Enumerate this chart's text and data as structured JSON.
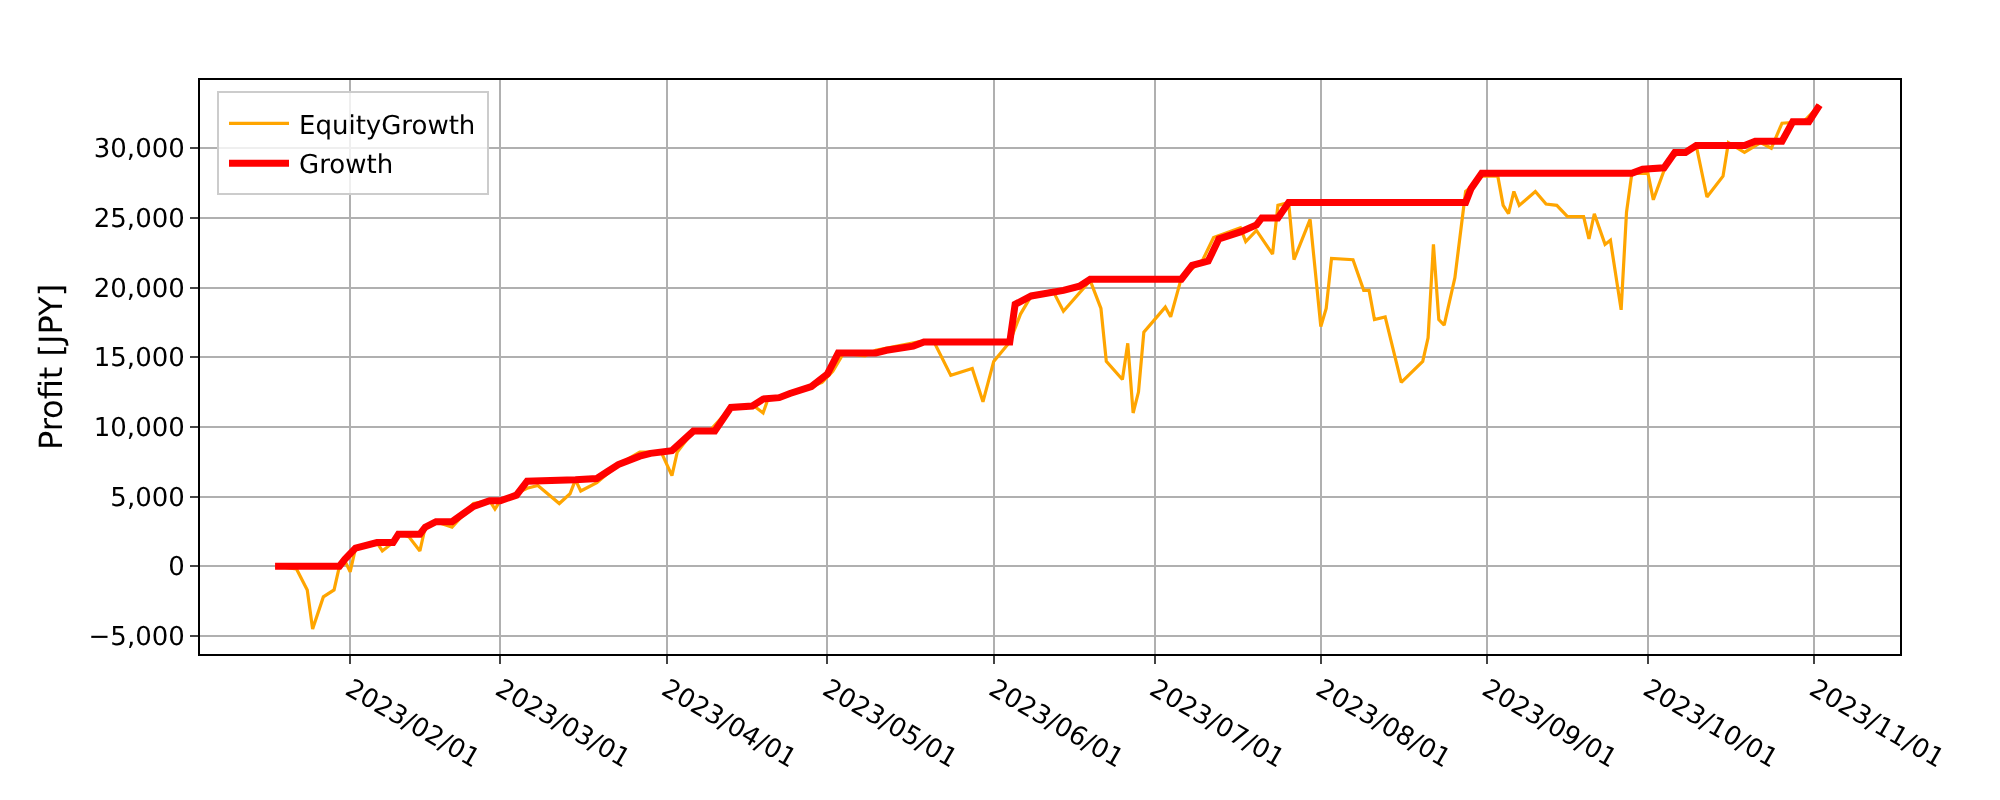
{
  "chart_data": {
    "type": "line",
    "ylabel": "Profit [JPY]",
    "grid": true,
    "legend": "top left",
    "xlim": [
      "2023-01-04",
      "2023-11-17"
    ],
    "xticks": [
      {
        "value": "2023-02-01",
        "label": "2023/02/01"
      },
      {
        "value": "2023-03-01",
        "label": "2023/03/01"
      },
      {
        "value": "2023-04-01",
        "label": "2023/04/01"
      },
      {
        "value": "2023-05-01",
        "label": "2023/05/01"
      },
      {
        "value": "2023-06-01",
        "label": "2023/06/01"
      },
      {
        "value": "2023-07-01",
        "label": "2023/07/01"
      },
      {
        "value": "2023-08-01",
        "label": "2023/08/01"
      },
      {
        "value": "2023-09-01",
        "label": "2023/09/01"
      },
      {
        "value": "2023-10-01",
        "label": "2023/10/01"
      },
      {
        "value": "2023-11-01",
        "label": "2023/11/01"
      }
    ],
    "ylim": [
      -6300,
      34900
    ],
    "yticks": [
      {
        "value": -5000,
        "label": "−5,000"
      },
      0,
      {
        "value": 5000,
        "label": "5,000"
      },
      {
        "value": 10000,
        "label": "10,000"
      },
      {
        "value": 15000,
        "label": "15,000"
      },
      {
        "value": 20000,
        "label": "20,000"
      },
      {
        "value": 25000,
        "label": "25,000"
      },
      {
        "value": 30000,
        "label": "30,000"
      }
    ],
    "series": [
      {
        "name": "EquityGrowth",
        "color": "#ffa500",
        "x": [
          "2023-01-18",
          "2023-01-22",
          "2023-01-24",
          "2023-01-25",
          "2023-01-27",
          "2023-01-29",
          "2023-01-30",
          "2023-01-31",
          "2023-02-01",
          "2023-02-02",
          "2023-02-06",
          "2023-02-07",
          "2023-02-09",
          "2023-02-10",
          "2023-02-12",
          "2023-02-14",
          "2023-02-15",
          "2023-02-17",
          "2023-02-20",
          "2023-02-24",
          "2023-02-27",
          "2023-02-28",
          "2023-03-01",
          "2023-03-06",
          "2023-03-08",
          "2023-03-12",
          "2023-03-14",
          "2023-03-15",
          "2023-03-16",
          "2023-03-19",
          "2023-03-23",
          "2023-03-27",
          "2023-03-31",
          "2023-04-02",
          "2023-04-03",
          "2023-04-06",
          "2023-04-09",
          "2023-04-13",
          "2023-04-17",
          "2023-04-19",
          "2023-04-20",
          "2023-04-24",
          "2023-04-30",
          "2023-05-02",
          "2023-05-04",
          "2023-05-08",
          "2023-05-10",
          "2023-05-18",
          "2023-05-21",
          "2023-05-24",
          "2023-05-28",
          "2023-05-30",
          "2023-06-01",
          "2023-06-04",
          "2023-06-06",
          "2023-06-08",
          "2023-06-12",
          "2023-06-14",
          "2023-06-19",
          "2023-06-21",
          "2023-06-22",
          "2023-06-25",
          "2023-06-26",
          "2023-06-27",
          "2023-06-28",
          "2023-06-29",
          "2023-07-03",
          "2023-07-04",
          "2023-07-06",
          "2023-07-10",
          "2023-07-12",
          "2023-07-17",
          "2023-07-18",
          "2023-07-20",
          "2023-07-23",
          "2023-07-24",
          "2023-07-26",
          "2023-07-27",
          "2023-07-30",
          "2023-08-01",
          "2023-08-02",
          "2023-08-03",
          "2023-08-07",
          "2023-08-09",
          "2023-08-10",
          "2023-08-11",
          "2023-08-13",
          "2023-08-16",
          "2023-08-20",
          "2023-08-21",
          "2023-08-22",
          "2023-08-23",
          "2023-08-24",
          "2023-08-26",
          "2023-08-28",
          "2023-08-29",
          "2023-08-31",
          "2023-09-03",
          "2023-09-04",
          "2023-09-05",
          "2023-09-06",
          "2023-09-07",
          "2023-09-10",
          "2023-09-12",
          "2023-09-14",
          "2023-09-16",
          "2023-09-19",
          "2023-09-20",
          "2023-09-21",
          "2023-09-23",
          "2023-09-24",
          "2023-09-26",
          "2023-09-27",
          "2023-09-28",
          "2023-10-01",
          "2023-10-02",
          "2023-10-04",
          "2023-10-05",
          "2023-10-10",
          "2023-10-12",
          "2023-10-15",
          "2023-10-16",
          "2023-10-19",
          "2023-10-22",
          "2023-10-24",
          "2023-10-26",
          "2023-10-30",
          "2023-11-02"
        ],
        "values": [
          0,
          -200,
          -1700,
          -4500,
          -2200,
          -1700,
          0,
          400,
          -400,
          1300,
          1700,
          1100,
          1700,
          2400,
          2100,
          1100,
          2800,
          3200,
          2800,
          4500,
          4700,
          4100,
          4700,
          5600,
          5800,
          4500,
          5200,
          6200,
          5400,
          6000,
          7300,
          8200,
          8200,
          6500,
          8200,
          9700,
          9700,
          11400,
          11600,
          11000,
          12100,
          12300,
          13200,
          14000,
          15300,
          15100,
          15500,
          16100,
          16000,
          13700,
          14200,
          11800,
          14700,
          16100,
          18100,
          19400,
          19800,
          18300,
          20500,
          18500,
          14700,
          13400,
          16000,
          11000,
          12500,
          16800,
          18600,
          17900,
          20700,
          22000,
          23600,
          24300,
          23300,
          24100,
          22400,
          25900,
          26100,
          22000,
          24900,
          17200,
          18500,
          22100,
          22000,
          19800,
          19800,
          17700,
          17900,
          13200,
          14700,
          16400,
          23100,
          17700,
          17300,
          20700,
          26900,
          27200,
          28000,
          28000,
          25900,
          25300,
          26900,
          25900,
          26900,
          26000,
          25900,
          25100,
          25100,
          23500,
          25300,
          23100,
          23400,
          18400,
          25400,
          28200,
          28200,
          26300,
          28400,
          29300,
          30200,
          26500,
          28000,
          30400,
          29700,
          30400,
          30000,
          31800,
          31900,
          33100
        ]
      },
      {
        "name": "Growth",
        "color": "#ff0000",
        "x": [
          "2023-01-18",
          "2023-01-30",
          "2023-01-31",
          "2023-02-02",
          "2023-02-06",
          "2023-02-09",
          "2023-02-10",
          "2023-02-14",
          "2023-02-15",
          "2023-02-17",
          "2023-02-20",
          "2023-02-24",
          "2023-02-27",
          "2023-03-01",
          "2023-03-04",
          "2023-03-06",
          "2023-03-15",
          "2023-03-19",
          "2023-03-21",
          "2023-03-23",
          "2023-03-27",
          "2023-03-29",
          "2023-04-02",
          "2023-04-06",
          "2023-04-10",
          "2023-04-13",
          "2023-04-17",
          "2023-04-19",
          "2023-04-22",
          "2023-04-24",
          "2023-04-28",
          "2023-05-01",
          "2023-05-03",
          "2023-05-10",
          "2023-05-12",
          "2023-05-17",
          "2023-05-19",
          "2023-06-04",
          "2023-06-05",
          "2023-06-08",
          "2023-06-14",
          "2023-06-17",
          "2023-06-19",
          "2023-07-06",
          "2023-07-08",
          "2023-07-11",
          "2023-07-13",
          "2023-07-17",
          "2023-07-20",
          "2023-07-21",
          "2023-07-24",
          "2023-07-26",
          "2023-08-28",
          "2023-08-29",
          "2023-08-31",
          "2023-09-28",
          "2023-09-30",
          "2023-10-04",
          "2023-10-06",
          "2023-10-08",
          "2023-10-10",
          "2023-10-19",
          "2023-10-21",
          "2023-10-26",
          "2023-10-28",
          "2023-10-31",
          "2023-11-02"
        ],
        "values": [
          0,
          0,
          500,
          1300,
          1700,
          1700,
          2300,
          2300,
          2800,
          3200,
          3200,
          4300,
          4700,
          4700,
          5100,
          6100,
          6200,
          6300,
          6800,
          7300,
          7900,
          8100,
          8300,
          9700,
          9700,
          11400,
          11500,
          12000,
          12100,
          12400,
          12900,
          13800,
          15300,
          15300,
          15500,
          15800,
          16100,
          16100,
          18800,
          19400,
          19800,
          20100,
          20600,
          20600,
          21600,
          21900,
          23500,
          24000,
          24500,
          25000,
          25000,
          26100,
          26100,
          27100,
          28200,
          28200,
          28500,
          28600,
          29700,
          29700,
          30200,
          30200,
          30500,
          30500,
          31900,
          31900,
          33100
        ]
      }
    ]
  }
}
